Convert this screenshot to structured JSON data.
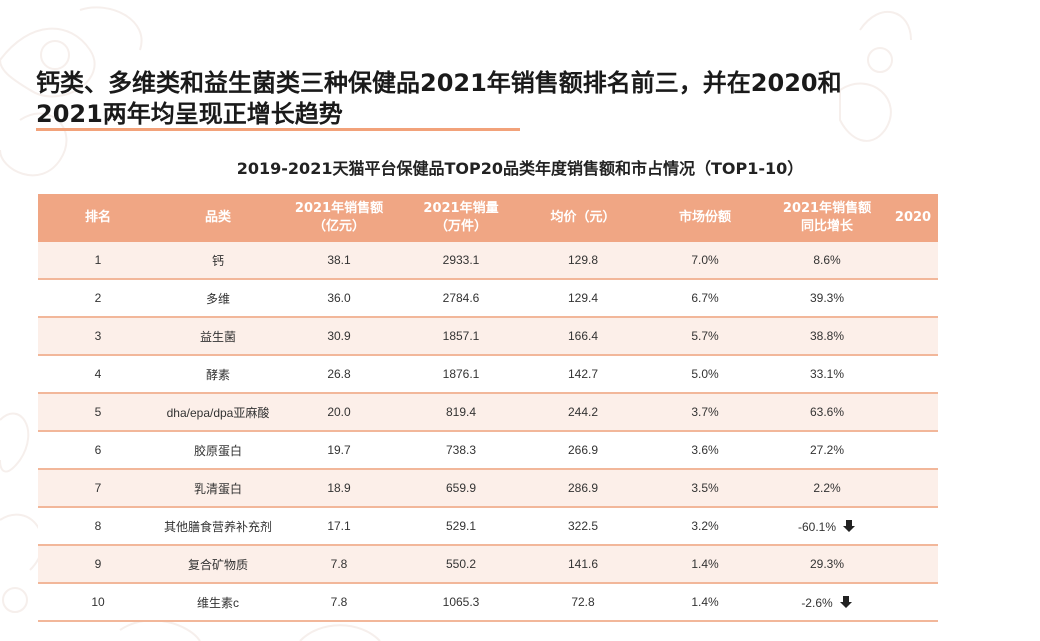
{
  "headline": {
    "line1": "钙类、多维类和益生菌类三种保健品2021年销售额排名前三，并在2020和",
    "line2": "2021两年均呈现正增长趋势"
  },
  "subtitle": "2019-2021天猫平台保健品TOP20品类年度销售额和市占情况（TOP1-10）",
  "colors": {
    "header_bg": "#f0a684",
    "row_tint": "#fcefe9",
    "underline": "#f2a27a",
    "divider": "#f2b79a"
  },
  "table": {
    "headers": [
      [
        "排名"
      ],
      [
        "品类"
      ],
      [
        "2021年销售额",
        "（亿元）"
      ],
      [
        "2021年销量",
        "（万件）"
      ],
      [
        "均价（元）"
      ],
      [
        "市场份额"
      ],
      [
        "2021年销售额",
        "同比增长"
      ],
      [
        "2020"
      ]
    ],
    "rows": [
      {
        "rank": "1",
        "category": "钙",
        "sales": "38.1",
        "volume": "2933.1",
        "avg_price": "129.8",
        "share": "7.0%",
        "growth": "8.6%",
        "down": false
      },
      {
        "rank": "2",
        "category": "多维",
        "sales": "36.0",
        "volume": "2784.6",
        "avg_price": "129.4",
        "share": "6.7%",
        "growth": "39.3%",
        "down": false
      },
      {
        "rank": "3",
        "category": "益生菌",
        "sales": "30.9",
        "volume": "1857.1",
        "avg_price": "166.4",
        "share": "5.7%",
        "growth": "38.8%",
        "down": false
      },
      {
        "rank": "4",
        "category": "酵素",
        "sales": "26.8",
        "volume": "1876.1",
        "avg_price": "142.7",
        "share": "5.0%",
        "growth": "33.1%",
        "down": false
      },
      {
        "rank": "5",
        "category": "dha/epa/dpa亚麻酸",
        "sales": "20.0",
        "volume": "819.4",
        "avg_price": "244.2",
        "share": "3.7%",
        "growth": "63.6%",
        "down": false
      },
      {
        "rank": "6",
        "category": "胶原蛋白",
        "sales": "19.7",
        "volume": "738.3",
        "avg_price": "266.9",
        "share": "3.6%",
        "growth": "27.2%",
        "down": false
      },
      {
        "rank": "7",
        "category": "乳清蛋白",
        "sales": "18.9",
        "volume": "659.9",
        "avg_price": "286.9",
        "share": "3.5%",
        "growth": "2.2%",
        "down": false
      },
      {
        "rank": "8",
        "category": "其他膳食营养补充剂",
        "sales": "17.1",
        "volume": "529.1",
        "avg_price": "322.5",
        "share": "3.2%",
        "growth": "-60.1%",
        "down": true
      },
      {
        "rank": "9",
        "category": "复合矿物质",
        "sales": "7.8",
        "volume": "550.2",
        "avg_price": "141.6",
        "share": "1.4%",
        "growth": "29.3%",
        "down": false
      },
      {
        "rank": "10",
        "category": "维生素c",
        "sales": "7.8",
        "volume": "1065.3",
        "avg_price": "72.8",
        "share": "1.4%",
        "growth": "-2.6%",
        "down": true
      }
    ]
  }
}
